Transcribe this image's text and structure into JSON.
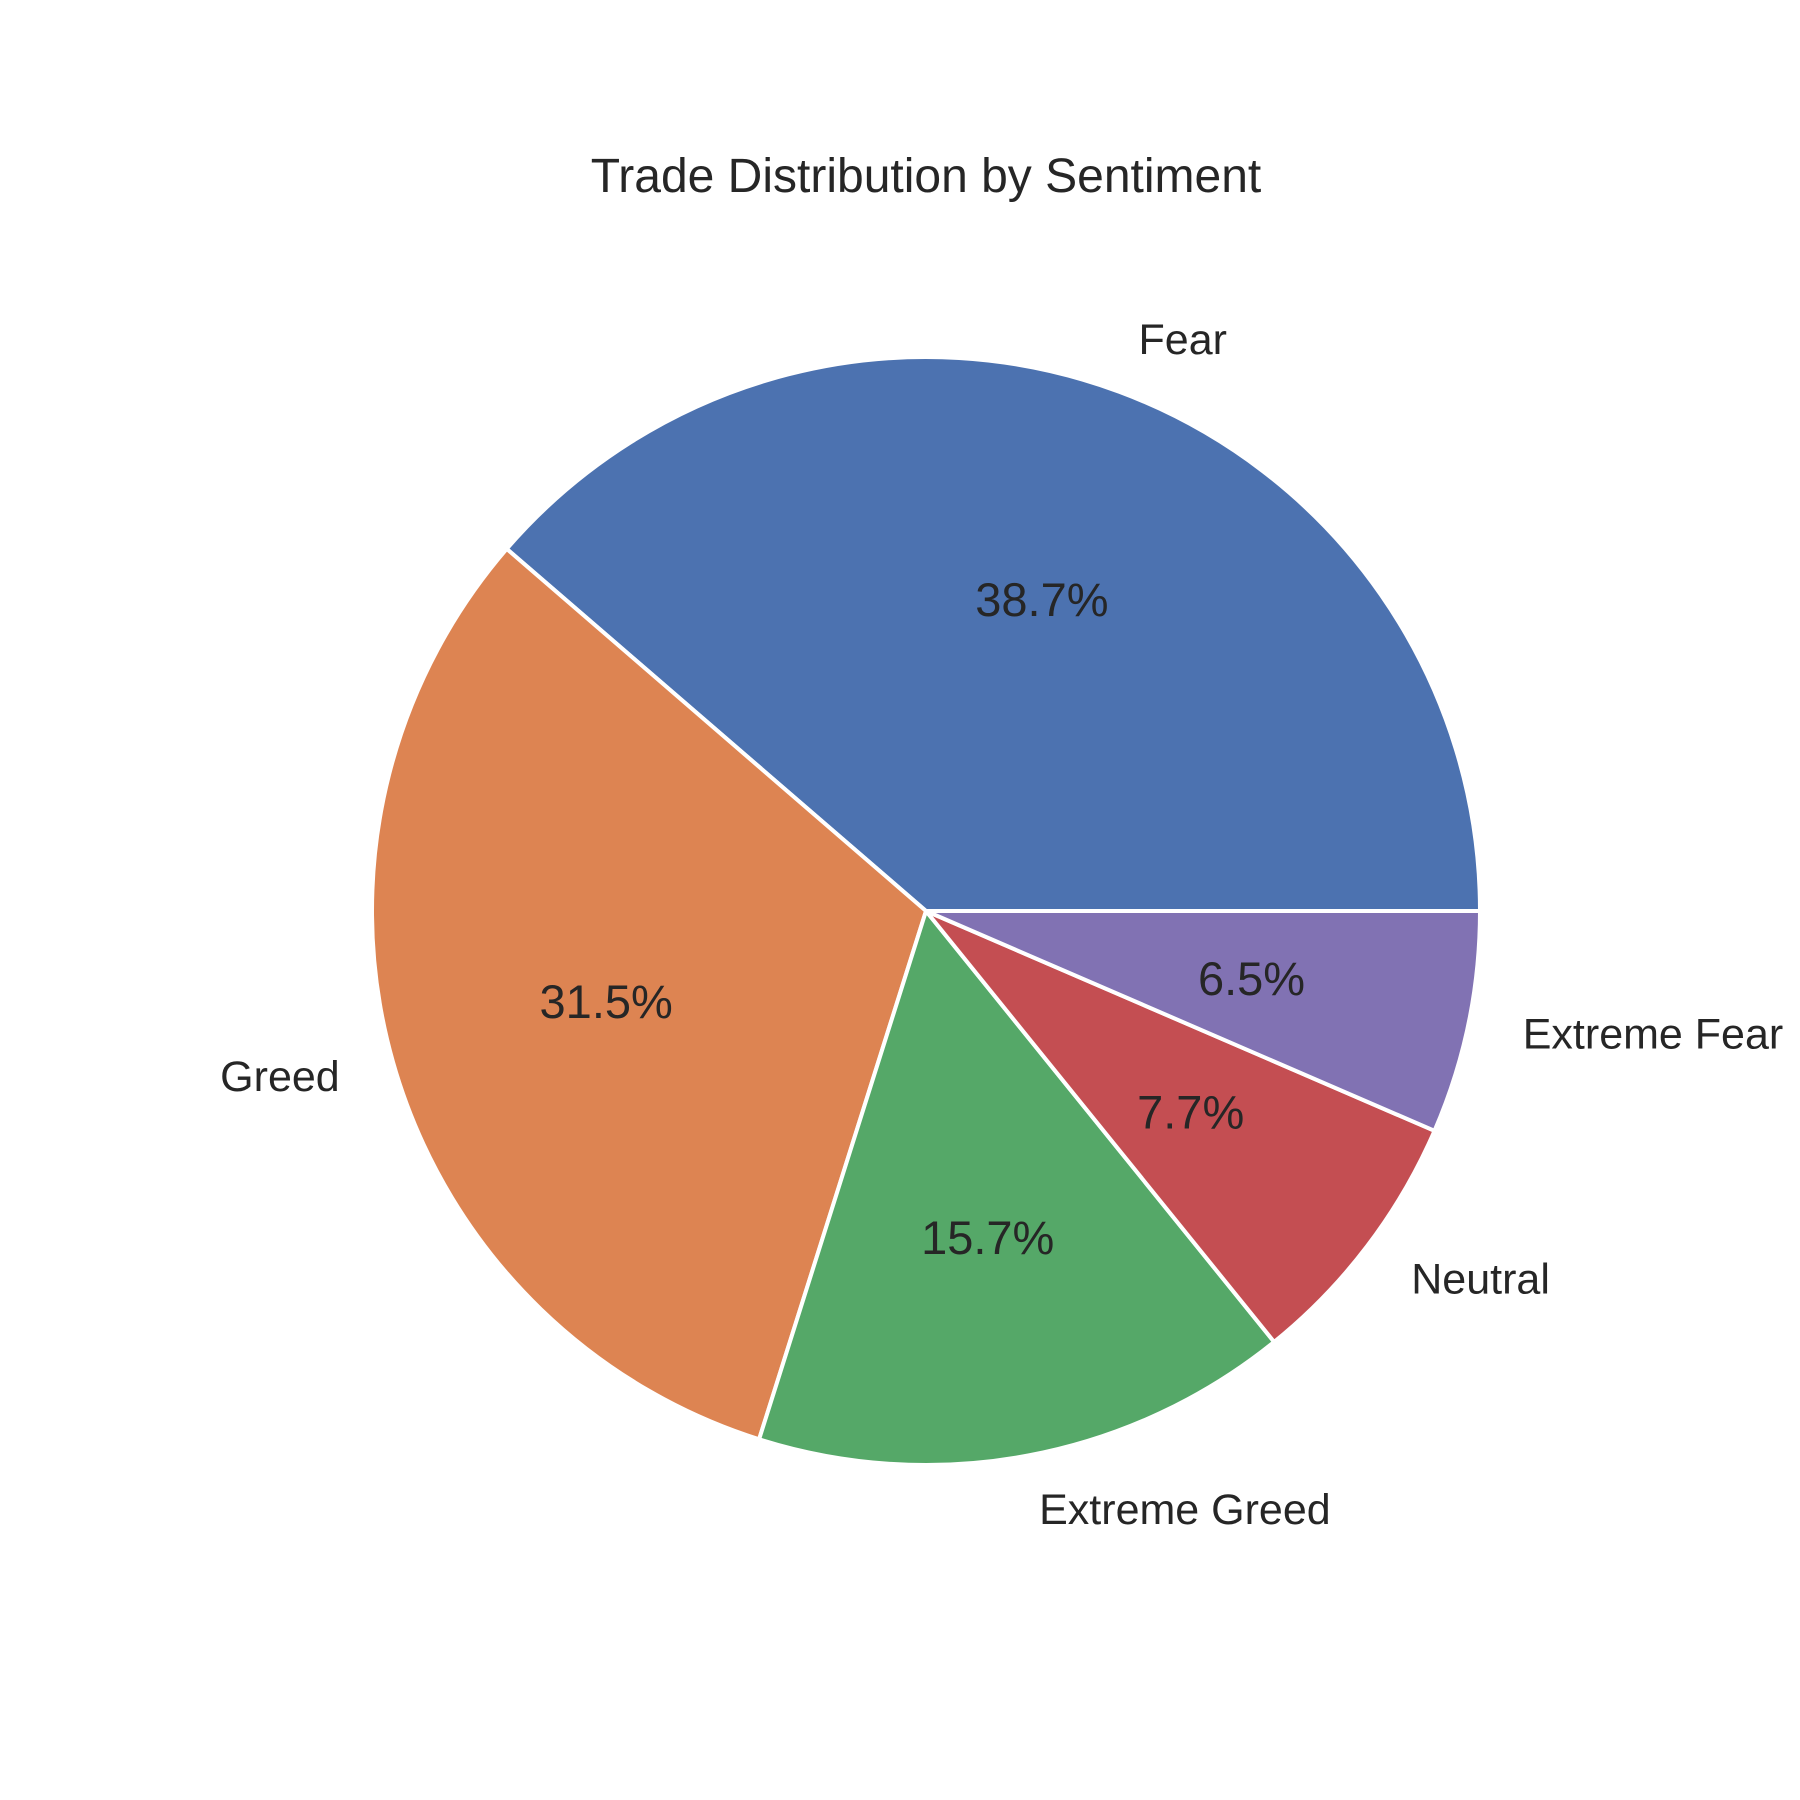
{
  "chart_data": {
    "type": "pie",
    "title": "Trade Distribution by Sentiment",
    "start_angle": "0deg (3 o'clock)",
    "direction": "counterclockwise",
    "slices": [
      {
        "label": "Fear",
        "value": 38.7,
        "pct_label": "38.7%",
        "color": "#4c72b0"
      },
      {
        "label": "Greed",
        "value": 31.5,
        "pct_label": "31.5%",
        "color": "#dd8452"
      },
      {
        "label": "Extreme Greed",
        "value": 15.7,
        "pct_label": "15.7%",
        "color": "#55a868"
      },
      {
        "label": "Neutral",
        "value": 7.7,
        "pct_label": "7.7%",
        "color": "#c44e52"
      },
      {
        "label": "Extreme Fear",
        "value": 6.5,
        "pct_label": "6.5%",
        "color": "#8172b3"
      }
    ],
    "edge_color": "#ffffff",
    "legend": "none"
  }
}
